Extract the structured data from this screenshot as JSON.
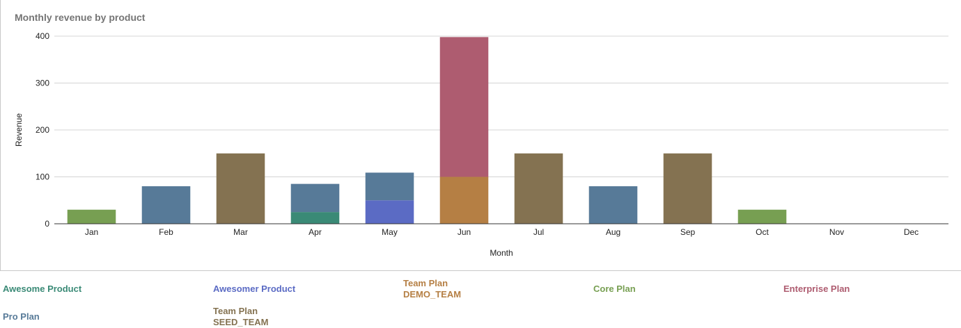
{
  "chart_data": {
    "type": "bar",
    "stacked": true,
    "title": "Monthly revenue by product",
    "xlabel": "Month",
    "ylabel": "Revenue",
    "ylim": [
      0,
      400
    ],
    "yticks": [
      "0",
      "100",
      "200",
      "300",
      "400"
    ],
    "grid": true,
    "legend_position": "bottom",
    "categories": [
      "Jan",
      "Feb",
      "Mar",
      "Apr",
      "May",
      "Jun",
      "Jul",
      "Aug",
      "Sep",
      "Oct",
      "Nov",
      "Dec"
    ],
    "series": [
      {
        "name": "Awesome Product",
        "color": "#3a8a76",
        "values": [
          0,
          0,
          0,
          25,
          0,
          0,
          0,
          0,
          0,
          0,
          0,
          0
        ]
      },
      {
        "name": "Awesomer Product",
        "color": "#5b6bc4",
        "values": [
          0,
          0,
          0,
          0,
          50,
          0,
          0,
          0,
          0,
          0,
          0,
          0
        ]
      },
      {
        "name": "Team Plan",
        "name_sub": "DEMO_TEAM",
        "color": "#b57f44",
        "values": [
          0,
          0,
          0,
          0,
          0,
          100,
          0,
          0,
          0,
          0,
          0,
          0
        ]
      },
      {
        "name": "Core Plan",
        "color": "#779f52",
        "values": [
          30,
          0,
          0,
          0,
          0,
          0,
          0,
          0,
          0,
          30,
          0,
          0
        ]
      },
      {
        "name": "Enterprise Plan",
        "color": "#ae5c70",
        "values": [
          0,
          0,
          0,
          0,
          0,
          298,
          0,
          0,
          0,
          0,
          0,
          0
        ]
      },
      {
        "name": "Pro Plan",
        "color": "#577a98",
        "values": [
          0,
          80,
          0,
          60,
          59,
          0,
          0,
          80,
          0,
          0,
          0,
          0
        ]
      },
      {
        "name": "Team Plan",
        "name_sub": "SEED_TEAM",
        "color": "#847251",
        "values": [
          0,
          0,
          150,
          0,
          0,
          0,
          150,
          0,
          150,
          0,
          0,
          0
        ]
      }
    ]
  }
}
